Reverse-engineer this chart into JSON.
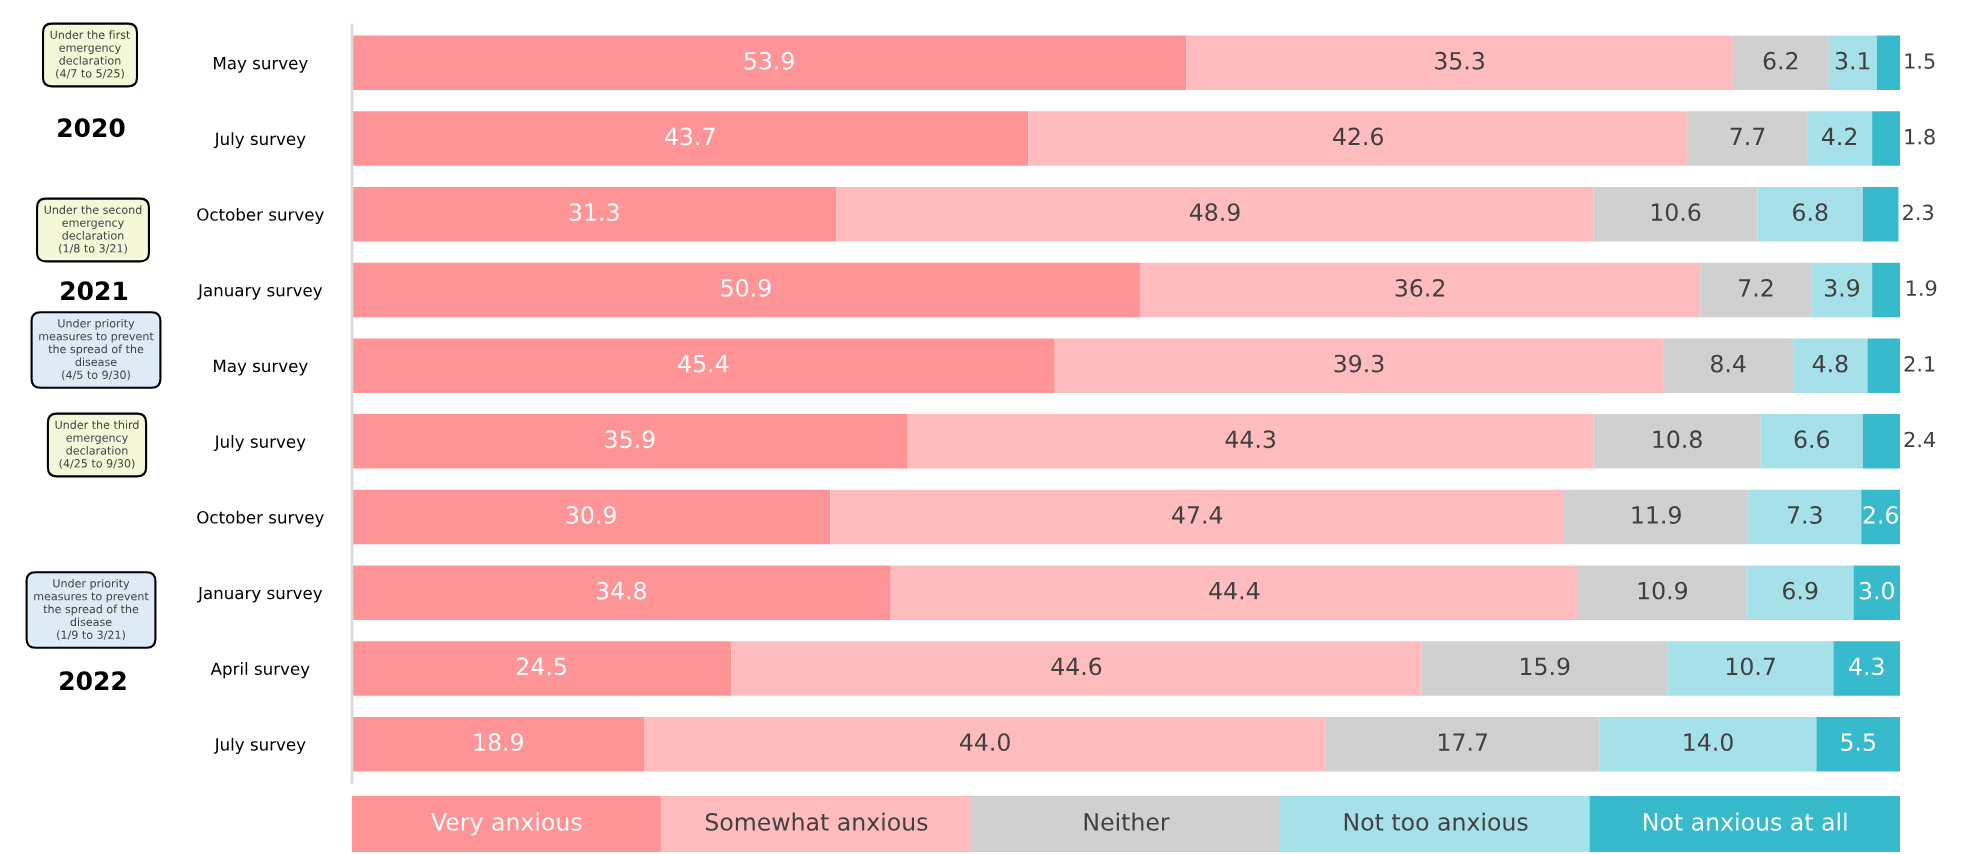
{
  "chart_data": {
    "type": "bar",
    "orientation": "horizontal",
    "stacked": true,
    "legend": "bottom",
    "grid": false,
    "tick_labels": "y",
    "xlim": [
      0,
      100
    ],
    "categories": [
      "May survey",
      "July survey",
      "October survey",
      "January survey",
      "May survey",
      "July survey",
      "October survey",
      "January survey",
      "April survey",
      "July survey"
    ],
    "series": [
      {
        "name": "Very anxious",
        "color": "#ff9497",
        "values": [
          53.9,
          43.7,
          31.3,
          50.9,
          45.4,
          35.9,
          30.9,
          34.8,
          24.5,
          18.9
        ],
        "value_labels": [
          "53.9",
          "43.7",
          "31.3",
          "50.9",
          "45.4",
          "35.9",
          "30.9",
          "34.8",
          "24.5",
          "18.9"
        ]
      },
      {
        "name": "Somewhat anxious",
        "color": "#ffbcbe",
        "values": [
          35.3,
          42.6,
          48.9,
          36.2,
          39.3,
          44.3,
          47.4,
          44.4,
          44.6,
          44.0
        ],
        "value_labels": [
          "35.3",
          "42.6",
          "48.9",
          "36.2",
          "39.3",
          "44.3",
          "47.4",
          "44.4",
          "44.6",
          "44.0"
        ]
      },
      {
        "name": "Neither",
        "color": "#d0d0d0",
        "values": [
          6.2,
          7.7,
          10.6,
          7.2,
          8.4,
          10.8,
          11.9,
          10.9,
          15.9,
          17.7
        ],
        "value_labels": [
          "6.2",
          "7.7",
          "10.6",
          "7.2",
          "8.4",
          "10.8",
          "11.9",
          "10.9",
          "15.9",
          "17.7"
        ]
      },
      {
        "name": "Not too anxious",
        "color": "#a6e0e8",
        "values": [
          3.1,
          4.2,
          6.8,
          3.9,
          4.8,
          6.6,
          7.3,
          6.9,
          10.7,
          14.0
        ],
        "value_labels": [
          "3.1",
          "4.2",
          "6.8",
          "3.9",
          "4.8",
          "6.6",
          "7.3",
          "6.9",
          "10.7",
          "14.0"
        ]
      },
      {
        "name": "Not anxious at all",
        "color": "#38bacd",
        "values": [
          1.5,
          1.8,
          2.3,
          1.9,
          2.1,
          2.4,
          2.6,
          3.0,
          4.3,
          5.5
        ],
        "value_labels": [
          "1.5",
          "1.8",
          "2.3",
          "1.9",
          "2.1",
          "2.4",
          "2.6",
          "3.0",
          "4.3",
          "5.5"
        ]
      }
    ],
    "annotations": [
      "2020",
      "2021",
      "2022",
      "Under the first\nemergency\ndeclaration\n(4/7 to 5/25)",
      "Under the second\nemergency\ndeclaration\n(1/8 to 3/21)",
      "Under priority\nmeasures to prevent\nthe spread of the\ndisease\n(4/5 to 9/30)",
      "Under the third\nemergency\ndeclaration\n(4/25 to 9/30)",
      "Under priority\nmeasures to prevent\nthe spread of the\ndisease\n(1/9 to 3/21)"
    ]
  }
}
